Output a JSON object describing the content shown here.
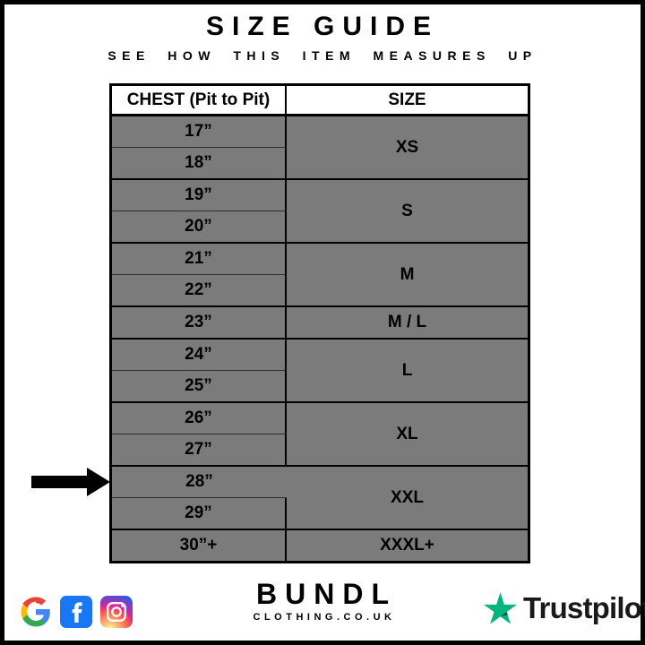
{
  "header": {
    "title": "SIZE GUIDE",
    "subtitle": "SEE HOW THIS ITEM MEASURES UP"
  },
  "chart_data": {
    "type": "table",
    "title": "SIZE GUIDE",
    "subtitle": "SEE HOW THIS ITEM MEASURES UP",
    "columns": [
      "CHEST (Pit to Pit)",
      "SIZE"
    ],
    "rows": [
      [
        "17”",
        "XS"
      ],
      [
        "18”",
        "XS"
      ],
      [
        "19”",
        "S"
      ],
      [
        "20”",
        "S"
      ],
      [
        "21”",
        "M"
      ],
      [
        "22”",
        "M"
      ],
      [
        "23”",
        "M / L"
      ],
      [
        "24”",
        "L"
      ],
      [
        "25”",
        "L"
      ],
      [
        "26”",
        "XL"
      ],
      [
        "27”",
        "XL"
      ],
      [
        "28”",
        "XXL"
      ],
      [
        "29”",
        "XXL"
      ],
      [
        "30”+",
        "XXXL+"
      ]
    ],
    "highlighted_row": "28”",
    "arrow_points_to_chest": "28”"
  },
  "table": {
    "columns": [
      "CHEST (Pit to Pit)",
      "SIZE"
    ],
    "groups": [
      {
        "chest": [
          "17”",
          "18”"
        ],
        "size": "XS",
        "highlighted": false
      },
      {
        "chest": [
          "19”",
          "20”"
        ],
        "size": "S",
        "highlighted": false
      },
      {
        "chest": [
          "21”",
          "22”"
        ],
        "size": "M",
        "highlighted": false
      },
      {
        "chest": [
          "23”"
        ],
        "size": "M / L",
        "highlighted": false
      },
      {
        "chest": [
          "24”",
          "25”"
        ],
        "size": "L",
        "highlighted": false
      },
      {
        "chest": [
          "26”",
          "27”"
        ],
        "size": "XL",
        "highlighted": false
      },
      {
        "chest": [
          "28”",
          "29”"
        ],
        "size": "XXL",
        "highlighted": true,
        "highlighted_chest": "28”"
      },
      {
        "chest": [
          "30”+"
        ],
        "size": "XXXL+",
        "highlighted": false
      }
    ]
  },
  "footer": {
    "social_icons": [
      "google",
      "facebook",
      "instagram"
    ],
    "brand": {
      "name": "BUNDL",
      "tagline": "CLOTHING.CO.UK"
    },
    "trustpilot_label": "Trustpilot"
  },
  "colors": {
    "row_gray": "#7b7b7b",
    "highlight_white": "#ffffff",
    "border_black": "#000000",
    "trustpilot_green": "#00b67a",
    "trustpilot_green_dark": "#005128",
    "facebook_blue": "#1877f2",
    "google_blue": "#4285F4",
    "google_red": "#EA4335",
    "google_yellow": "#FBBC05",
    "google_green": "#34A853"
  }
}
